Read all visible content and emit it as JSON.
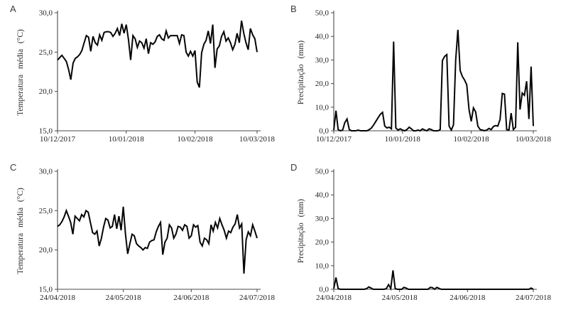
{
  "figure": {
    "background": "#ffffff",
    "line_color": "#050505",
    "axis_color": "#4a4a4a",
    "text_color": "#1f1f1f"
  },
  "chart_data": [
    {
      "panel_label": "A",
      "type": "line",
      "title": "",
      "xlabel": "",
      "ylabel": "Temperatura média (°C)",
      "ylim": [
        15,
        30
      ],
      "grid": false,
      "legend": "none",
      "y_tick_values": [
        15,
        20,
        25,
        30
      ],
      "y_tick_labels": [
        "15,0",
        "20,0",
        "25,0",
        "30,0"
      ],
      "x_tick_labels": [
        "10/12/2017",
        "10/01/2018",
        "10/02/2018",
        "10/03/2018"
      ],
      "x_tick_days": [
        0,
        31,
        62,
        90
      ],
      "n_days": 90,
      "values": [
        24.0,
        24.3,
        24.6,
        24.2,
        23.8,
        22.8,
        21.5,
        23.6,
        24.2,
        24.4,
        24.7,
        25.2,
        26.2,
        27.1,
        26.9,
        25.1,
        27.0,
        26.2,
        25.9,
        27.2,
        26.5,
        27.5,
        27.6,
        27.6,
        27.5,
        27.0,
        27.4,
        28.0,
        27.1,
        28.6,
        27.4,
        28.5,
        26.6,
        24.0,
        27.1,
        26.7,
        25.6,
        26.4,
        26.2,
        25.5,
        26.7,
        24.8,
        26.2,
        26.0,
        26.3,
        27.0,
        27.2,
        26.7,
        26.5,
        27.7,
        26.8,
        27.1,
        27.1,
        27.1,
        27.1,
        26.1,
        27.2,
        27.1,
        25.0,
        24.5,
        25.1,
        24.5,
        25.2,
        21.2,
        20.5,
        24.9,
        26.0,
        26.5,
        27.7,
        26.1,
        28.5,
        23.0,
        25.4,
        25.8,
        27.0,
        27.6,
        26.4,
        26.8,
        26.2,
        25.3,
        26.0,
        27.4,
        26.2,
        29.0,
        27.4,
        26.2,
        25.3,
        28.0,
        27.2,
        26.7,
        25.0
      ]
    },
    {
      "panel_label": "B",
      "type": "line",
      "title": "",
      "xlabel": "",
      "ylabel": "Precipitação (mm)",
      "ylim": [
        0,
        50
      ],
      "grid": false,
      "legend": "none",
      "y_tick_values": [
        0,
        10,
        20,
        30,
        40,
        50
      ],
      "y_tick_labels": [
        "0,0",
        "10,0",
        "20,0",
        "30,0",
        "40,0",
        "50,0"
      ],
      "x_tick_labels": [
        "10/12/2017",
        "10/01/2018",
        "10/02/2018",
        "10/03/2018"
      ],
      "x_tick_days": [
        0,
        31,
        62,
        90
      ],
      "n_days": 90,
      "values": [
        0.3,
        8.5,
        0.5,
        0.0,
        0.3,
        3.5,
        5.0,
        0.5,
        0.0,
        0.0,
        0.0,
        0.3,
        0.0,
        0.0,
        0.0,
        0.0,
        0.5,
        1.2,
        2.5,
        4.0,
        5.5,
        7.0,
        7.8,
        2.0,
        1.2,
        1.5,
        0.8,
        37.8,
        1.2,
        0.3,
        0.8,
        0.3,
        0.0,
        0.5,
        1.5,
        0.8,
        0.0,
        0.0,
        0.3,
        0.0,
        0.8,
        0.3,
        0.0,
        0.8,
        0.5,
        0.0,
        0.0,
        0.0,
        0.5,
        29.8,
        31.5,
        32.3,
        2.0,
        0.3,
        2.5,
        30.0,
        42.8,
        25.5,
        23.0,
        21.5,
        19.5,
        9.0,
        4.0,
        9.7,
        8.0,
        2.0,
        0.5,
        0.3,
        0.0,
        0.3,
        1.0,
        0.5,
        1.8,
        2.2,
        2.0,
        4.8,
        15.8,
        15.5,
        0.5,
        0.3,
        7.5,
        0.5,
        1.5,
        37.5,
        9.0,
        16.0,
        15.0,
        21.0,
        5.0,
        27.2,
        2.0
      ]
    },
    {
      "panel_label": "C",
      "type": "line",
      "title": "",
      "xlabel": "",
      "ylabel": "Temperatura média (°C)",
      "ylim": [
        15,
        30
      ],
      "grid": false,
      "legend": "none",
      "y_tick_values": [
        15,
        20,
        25,
        30
      ],
      "y_tick_labels": [
        "15,0",
        "20,0",
        "25,0",
        "30,0"
      ],
      "x_tick_labels": [
        "24/04/2018",
        "24/05/2018",
        "24/06/2018",
        "24/07/2018"
      ],
      "x_tick_days": [
        0,
        30,
        61,
        91
      ],
      "n_days": 91,
      "values": [
        23.0,
        23.2,
        23.6,
        24.2,
        25.0,
        24.3,
        23.5,
        22.0,
        24.3,
        24.0,
        23.7,
        24.5,
        24.2,
        25.0,
        24.8,
        23.5,
        22.2,
        22.0,
        22.4,
        20.5,
        21.5,
        22.9,
        24.0,
        23.8,
        22.8,
        23.0,
        24.5,
        22.7,
        24.3,
        22.5,
        25.5,
        22.0,
        19.5,
        20.8,
        22.0,
        21.8,
        20.8,
        20.5,
        20.3,
        20.0,
        20.3,
        20.2,
        21.0,
        21.2,
        21.3,
        22.3,
        23.0,
        23.5,
        19.4,
        21.0,
        21.5,
        23.2,
        22.8,
        21.5,
        22.0,
        23.0,
        22.9,
        22.5,
        23.2,
        23.0,
        21.5,
        21.8,
        23.2,
        22.9,
        23.1,
        21.0,
        20.5,
        21.5,
        21.3,
        20.8,
        23.2,
        22.4,
        23.5,
        22.8,
        24.0,
        23.2,
        22.5,
        21.5,
        22.4,
        22.2,
        22.9,
        23.3,
        24.5,
        22.8,
        23.3,
        17.0,
        21.3,
        22.3,
        21.8,
        23.2,
        22.4,
        21.5
      ]
    },
    {
      "panel_label": "D",
      "type": "line",
      "title": "",
      "xlabel": "",
      "ylabel": "Precipitação (mm)",
      "ylim": [
        0,
        50
      ],
      "grid": false,
      "legend": "none",
      "y_tick_values": [
        0,
        10,
        20,
        30,
        40,
        50
      ],
      "y_tick_labels": [
        "0,0",
        "10,0",
        "20,0",
        "30,0",
        "40,0",
        "50,0"
      ],
      "x_tick_labels": [
        "24/04/2018",
        "24/05/2018",
        "24/06/2018",
        "24/07/2018"
      ],
      "x_tick_days": [
        0,
        30,
        61,
        91
      ],
      "n_days": 91,
      "values": [
        0.3,
        5.0,
        0.3,
        0.0,
        0.0,
        0.0,
        0.0,
        0.0,
        0.0,
        0.0,
        0.0,
        0.0,
        0.0,
        0.0,
        0.0,
        0.3,
        1.0,
        0.5,
        0.0,
        0.0,
        0.0,
        0.0,
        0.0,
        0.0,
        0.3,
        2.0,
        0.3,
        8.0,
        0.3,
        0.0,
        0.0,
        0.0,
        0.8,
        0.5,
        0.0,
        0.0,
        0.0,
        0.0,
        0.0,
        0.0,
        0.0,
        0.0,
        0.0,
        0.0,
        0.8,
        0.7,
        0.0,
        0.8,
        0.4,
        0.0,
        0.0,
        0.0,
        0.0,
        0.0,
        0.0,
        0.0,
        0.0,
        0.0,
        0.0,
        0.0,
        0.0,
        0.0,
        0.0,
        0.0,
        0.0,
        0.0,
        0.0,
        0.0,
        0.0,
        0.0,
        0.0,
        0.0,
        0.0,
        0.0,
        0.0,
        0.0,
        0.0,
        0.0,
        0.0,
        0.0,
        0.0,
        0.0,
        0.0,
        0.0,
        0.0,
        0.0,
        0.0,
        0.0,
        0.0,
        0.0,
        0.5,
        0.0
      ]
    }
  ]
}
